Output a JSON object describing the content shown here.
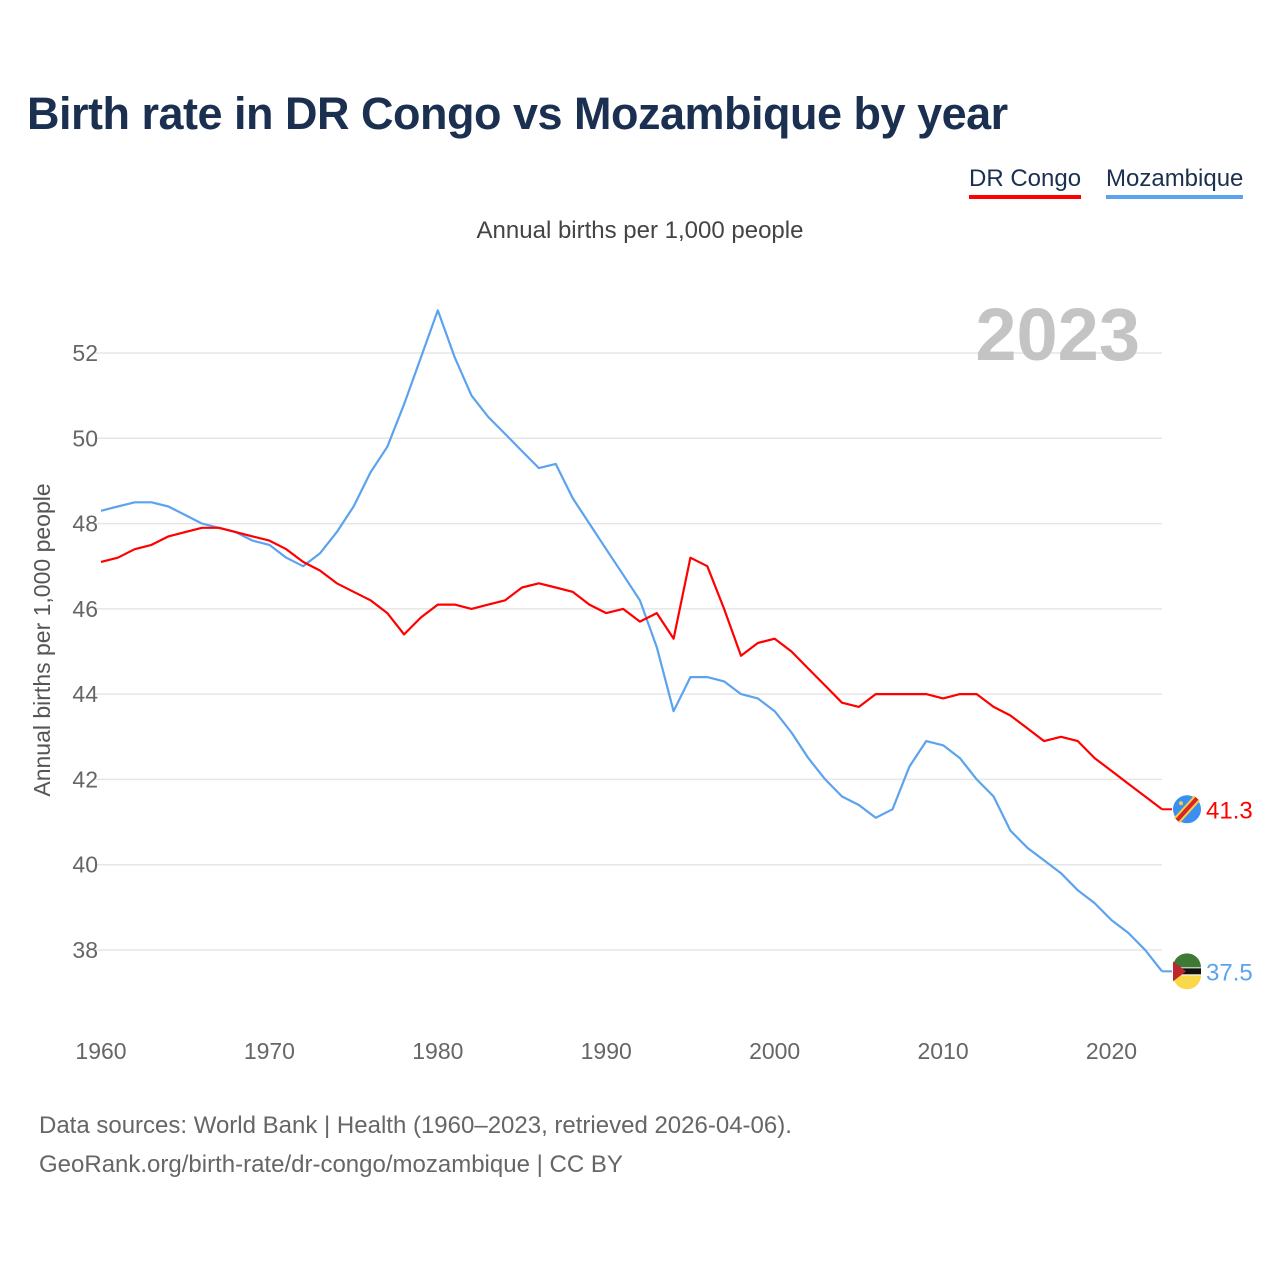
{
  "title": "Birth rate in DR Congo vs Mozambique by year",
  "subtitle": "Annual births per 1,000 people",
  "footer": {
    "line1": "Data sources: World Bank | Health (1960–2023, retrieved 2026-04-06).",
    "line2": "GeoRank.org/birth-rate/dr-congo/mozambique | CC BY"
  },
  "chart_data": {
    "type": "line",
    "title": "Birth rate in DR Congo vs Mozambique by year",
    "ylabel": "Annual births per 1,000 people",
    "xlabel": "",
    "year_label": "2023",
    "xlim": [
      1960,
      2023
    ],
    "ylim": [
      36.5,
      53.5
    ],
    "xticks": [
      1960,
      1970,
      1980,
      1990,
      2000,
      2010,
      2020
    ],
    "yticks": [
      38,
      40,
      42,
      44,
      46,
      48,
      50,
      52
    ],
    "grid": true,
    "legend": "top-right",
    "x": [
      1960,
      1961,
      1962,
      1963,
      1964,
      1965,
      1966,
      1967,
      1968,
      1969,
      1970,
      1971,
      1972,
      1973,
      1974,
      1975,
      1976,
      1977,
      1978,
      1979,
      1980,
      1981,
      1982,
      1983,
      1984,
      1985,
      1986,
      1987,
      1988,
      1989,
      1990,
      1991,
      1992,
      1993,
      1994,
      1995,
      1996,
      1997,
      1998,
      1999,
      2000,
      2001,
      2002,
      2003,
      2004,
      2005,
      2006,
      2007,
      2008,
      2009,
      2010,
      2011,
      2012,
      2013,
      2014,
      2015,
      2016,
      2017,
      2018,
      2019,
      2020,
      2021,
      2022,
      2023
    ],
    "series": [
      {
        "name": "DR Congo",
        "color": "#ff0000",
        "end_label": "41.3",
        "values": [
          47.1,
          47.2,
          47.4,
          47.5,
          47.7,
          47.8,
          47.9,
          47.9,
          47.8,
          47.7,
          47.6,
          47.4,
          47.1,
          46.9,
          46.6,
          46.4,
          46.2,
          45.9,
          45.4,
          45.8,
          46.1,
          46.1,
          46.0,
          46.1,
          46.2,
          46.5,
          46.6,
          46.5,
          46.4,
          46.1,
          45.9,
          46.0,
          45.7,
          45.9,
          45.3,
          47.2,
          47.0,
          46.0,
          44.9,
          45.2,
          45.3,
          45.0,
          44.6,
          44.2,
          43.8,
          43.7,
          44.0,
          44.0,
          44.0,
          44.0,
          43.9,
          44.0,
          44.0,
          43.7,
          43.5,
          43.2,
          42.9,
          43.0,
          42.9,
          42.5,
          42.2,
          41.9,
          41.6,
          41.3
        ]
      },
      {
        "name": "Mozambique",
        "color": "#5ba3ee",
        "end_label": "37.5",
        "values": [
          48.3,
          48.4,
          48.5,
          48.5,
          48.4,
          48.2,
          48.0,
          47.9,
          47.8,
          47.6,
          47.5,
          47.2,
          47.0,
          47.3,
          47.8,
          48.4,
          49.2,
          49.8,
          50.8,
          51.9,
          53.0,
          51.9,
          51.0,
          50.5,
          50.1,
          49.7,
          49.3,
          49.4,
          48.6,
          48.0,
          47.4,
          46.8,
          46.2,
          45.1,
          43.6,
          44.4,
          44.4,
          44.3,
          44.0,
          43.9,
          43.6,
          43.1,
          42.5,
          42.0,
          41.6,
          41.4,
          41.1,
          41.3,
          42.3,
          42.9,
          42.8,
          42.5,
          42.0,
          41.6,
          40.8,
          40.4,
          40.1,
          39.8,
          39.4,
          39.1,
          38.7,
          38.4,
          38.0,
          37.5
        ]
      }
    ]
  }
}
